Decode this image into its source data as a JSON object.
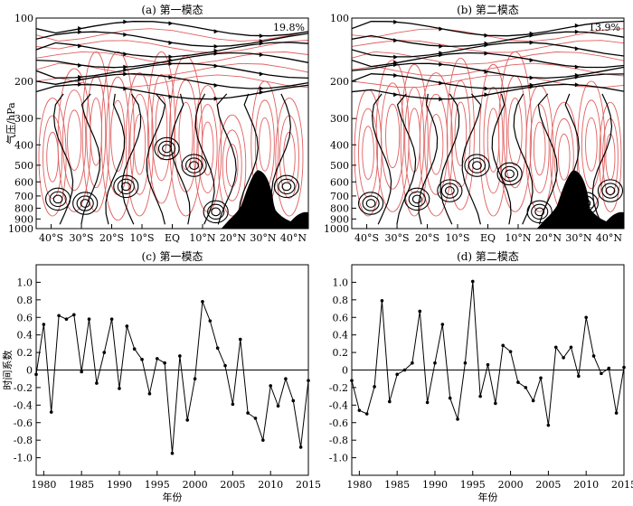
{
  "chart_data": [
    {
      "type": "streamline",
      "title": "(a) 第一模态",
      "ylabel": "气压/hPa",
      "variance": "19.8%",
      "yticks": [
        "100",
        "200",
        "300",
        "400",
        "500",
        "600",
        "700",
        "800",
        "900",
        "1000"
      ],
      "xticks": [
        "40°S",
        "30°S",
        "20°S",
        "10°S",
        "EQ",
        "10°N",
        "20°N",
        "30°N",
        "40°N"
      ],
      "terrain_peak_hpa": 530,
      "colors": {
        "streamline": "#000000",
        "circulation": "#e06060",
        "terrain": "#000000"
      }
    },
    {
      "type": "streamline",
      "title": "(b) 第二模态",
      "ylabel": "",
      "variance": "13.9%",
      "yticks": [
        "100",
        "200",
        "300",
        "400",
        "500",
        "600",
        "700",
        "800",
        "900",
        "1000"
      ],
      "xticks": [
        "40°S",
        "30°S",
        "20°S",
        "10°S",
        "EQ",
        "10°N",
        "20°N",
        "30°N",
        "40°N"
      ],
      "terrain_peak_hpa": 530,
      "colors": {
        "streamline": "#000000",
        "circulation": "#e06060",
        "terrain": "#000000"
      }
    },
    {
      "type": "line",
      "title": "(c) 第一模态",
      "xlabel": "年份",
      "ylabel": "时间系数",
      "xlim": [
        1979,
        2015
      ],
      "ylim": [
        -1.2,
        1.2
      ],
      "xticks": [
        1980,
        1985,
        1990,
        1995,
        2000,
        2005,
        2010,
        2015
      ],
      "yticks": [
        -1.0,
        -0.8,
        -0.6,
        -0.4,
        -0.2,
        0,
        0.2,
        0.4,
        0.6,
        0.8,
        1.0
      ],
      "x": [
        1979,
        1980,
        1981,
        1982,
        1983,
        1984,
        1985,
        1986,
        1987,
        1988,
        1989,
        1990,
        1991,
        1992,
        1993,
        1994,
        1995,
        1996,
        1997,
        1998,
        1999,
        2000,
        2001,
        2002,
        2003,
        2004,
        2005,
        2006,
        2007,
        2008,
        2009,
        2010,
        2011,
        2012,
        2013,
        2014,
        2015
      ],
      "values": [
        -0.05,
        0.52,
        -0.48,
        0.62,
        0.58,
        0.63,
        -0.02,
        0.58,
        -0.15,
        0.2,
        0.58,
        -0.21,
        0.5,
        0.24,
        0.12,
        -0.27,
        0.13,
        0.08,
        -0.95,
        0.16,
        -0.57,
        -0.1,
        0.78,
        0.56,
        0.25,
        0.05,
        -0.39,
        0.35,
        -0.49,
        -0.55,
        -0.8,
        -0.18,
        -0.41,
        -0.1,
        -0.35,
        -0.88,
        -0.12
      ]
    },
    {
      "type": "line",
      "title": "(d) 第二模态",
      "xlabel": "年份",
      "ylabel": "",
      "xlim": [
        1979,
        2015
      ],
      "ylim": [
        -1.2,
        1.2
      ],
      "xticks": [
        1980,
        1985,
        1990,
        1995,
        2000,
        2005,
        2010,
        2015
      ],
      "yticks": [
        -1.0,
        -0.8,
        -0.6,
        -0.4,
        -0.2,
        0,
        0.2,
        0.4,
        0.6,
        0.8,
        1.0
      ],
      "x": [
        1979,
        1980,
        1981,
        1982,
        1983,
        1984,
        1985,
        1986,
        1987,
        1988,
        1989,
        1990,
        1991,
        1992,
        1993,
        1994,
        1995,
        1996,
        1997,
        1998,
        1999,
        2000,
        2001,
        2002,
        2003,
        2004,
        2005,
        2006,
        2007,
        2008,
        2009,
        2010,
        2011,
        2012,
        2013,
        2014,
        2015
      ],
      "values": [
        -0.12,
        -0.46,
        -0.5,
        -0.19,
        0.79,
        -0.36,
        -0.05,
        0.0,
        0.08,
        0.67,
        -0.37,
        0.08,
        0.52,
        -0.32,
        -0.56,
        0.08,
        1.01,
        -0.3,
        0.06,
        -0.38,
        0.28,
        0.21,
        -0.14,
        -0.2,
        -0.35,
        -0.09,
        -0.63,
        0.26,
        0.14,
        0.26,
        -0.07,
        0.6,
        0.16,
        -0.04,
        0.02,
        -0.49,
        0.03
      ]
    }
  ]
}
